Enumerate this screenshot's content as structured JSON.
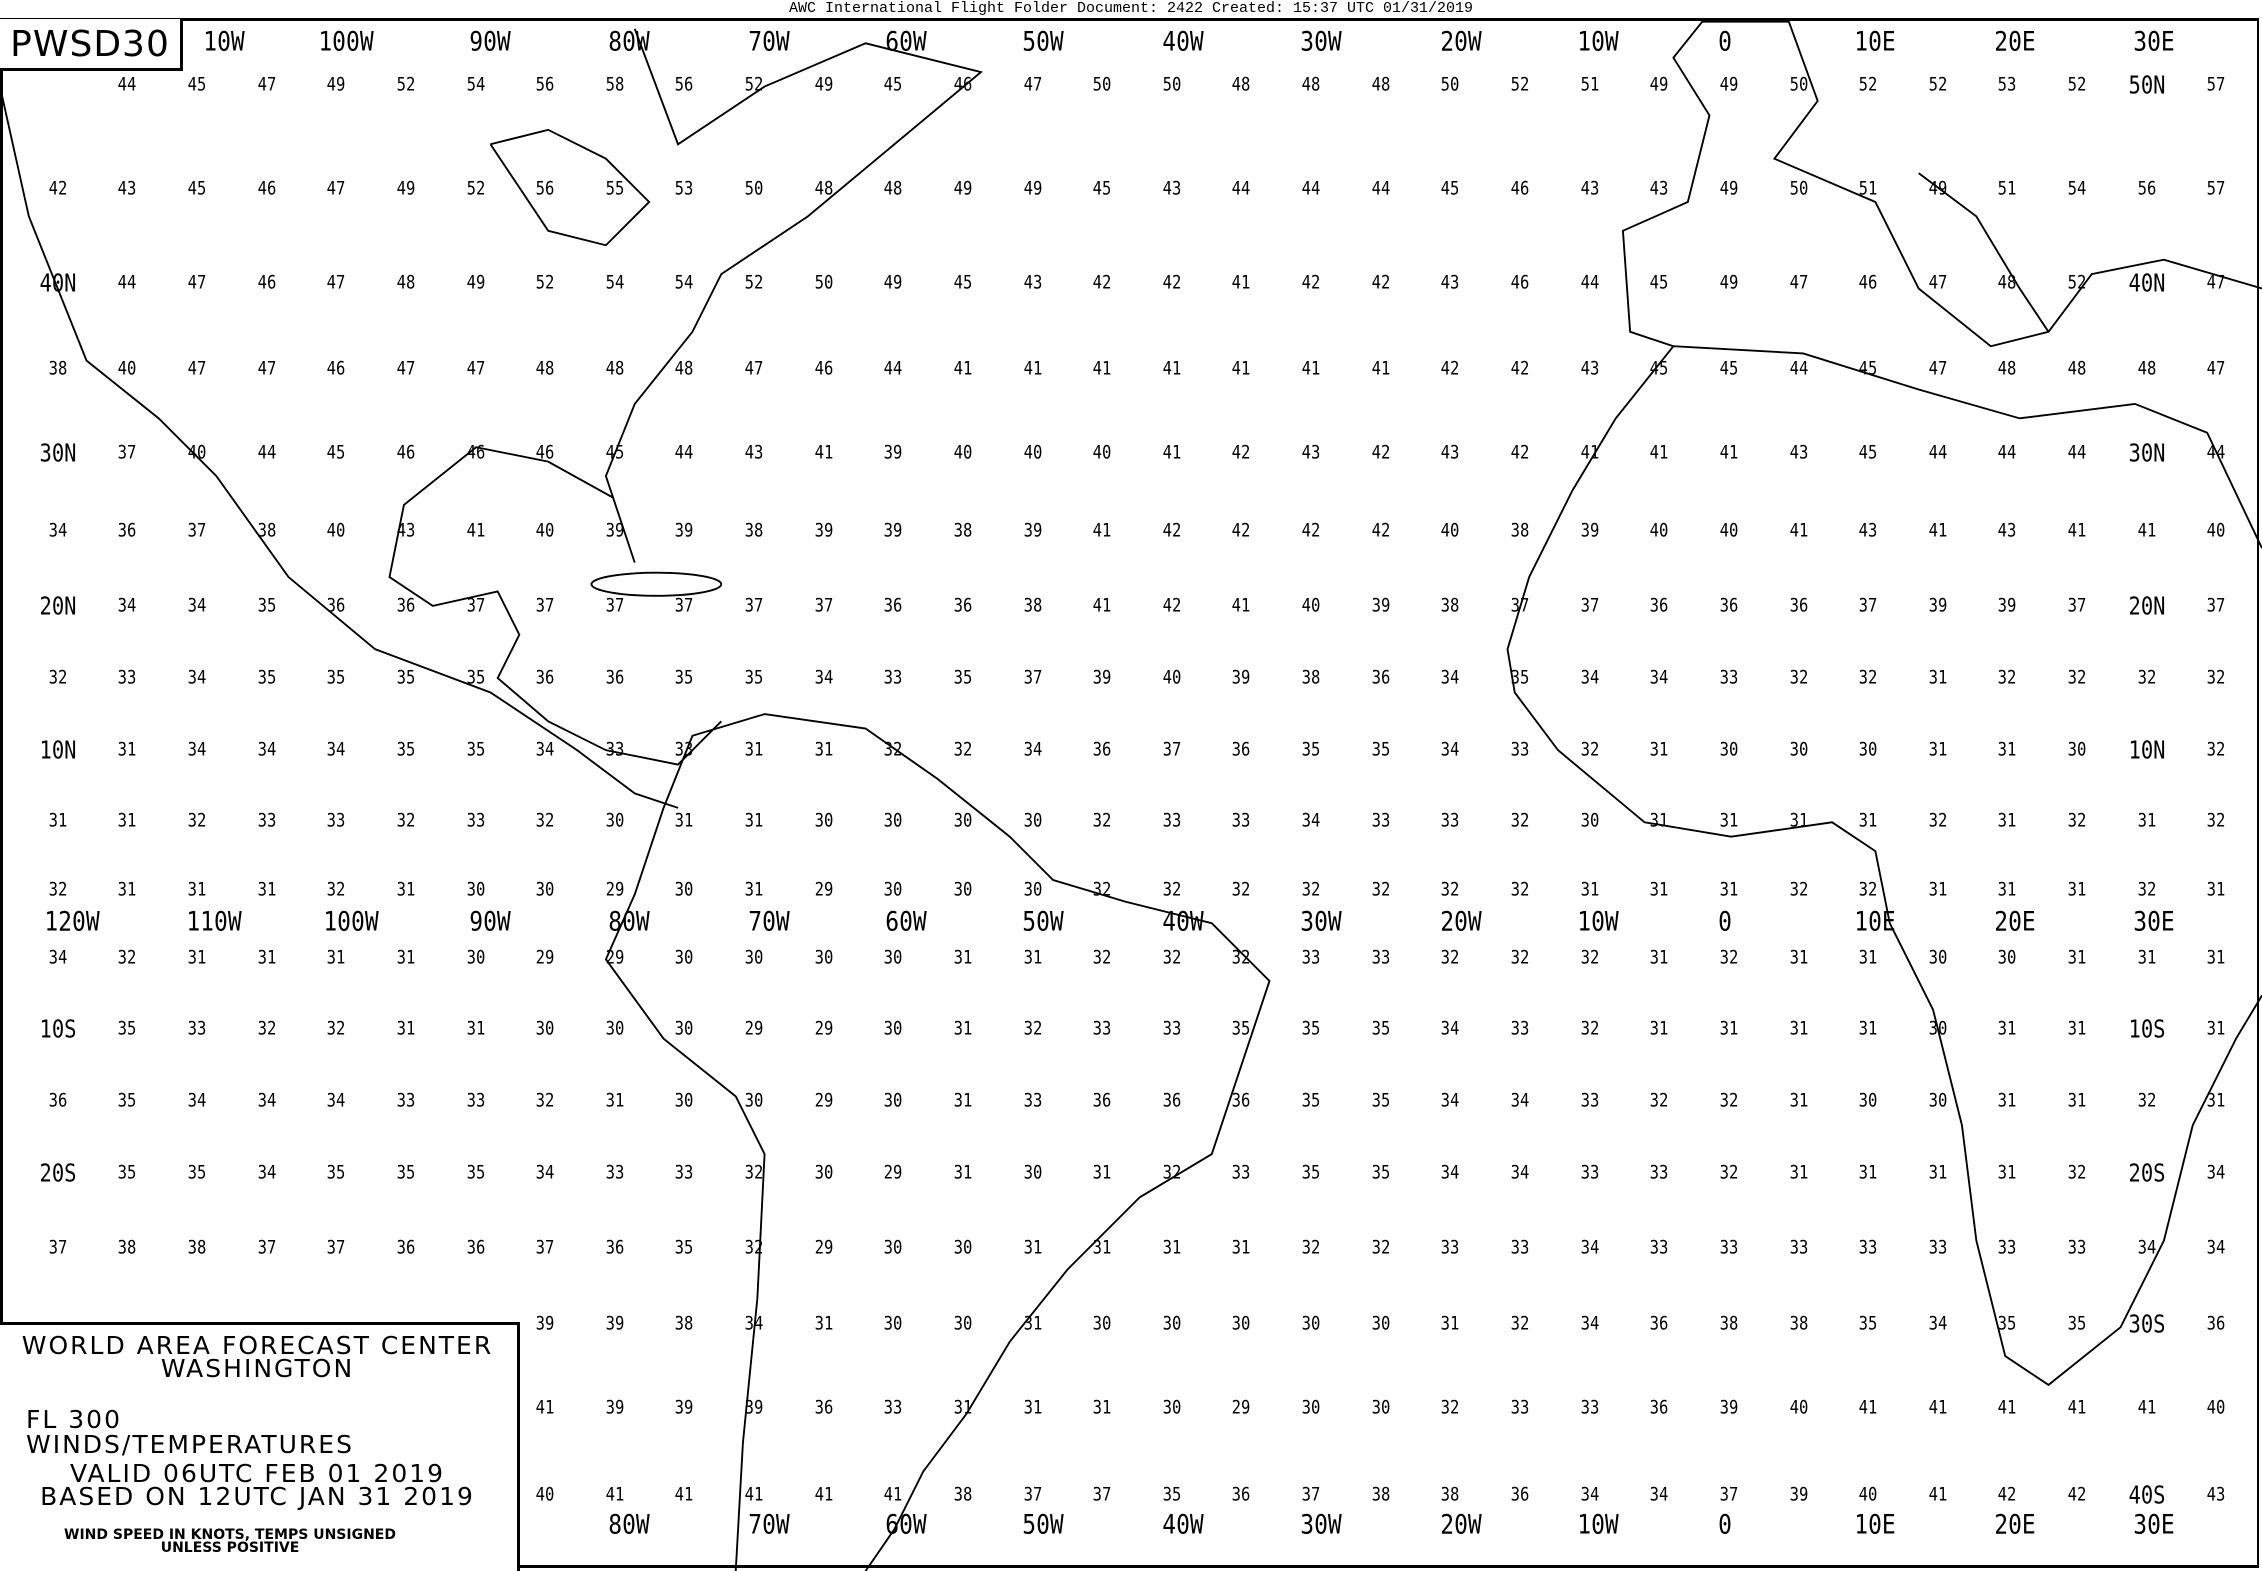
{
  "header": {
    "document_title": "AWC International Flight Folder Document: 2422 Created: 15:37 UTC 01/31/2019"
  },
  "chart_id": "PWSD30",
  "legend": {
    "center": "WORLD AREA FORECAST CENTER",
    "city": "WASHINGTON",
    "level": "FL 300",
    "product": "WINDS/TEMPERATURES",
    "valid": "VALID 06UTC FEB 01 2019",
    "based_on": "BASED ON 12UTC JAN 31 2019",
    "note_line1": "WIND SPEED IN KNOTS, TEMPS UNSIGNED",
    "note_line2": "UNLESS POSITIVE"
  },
  "longitude_labels": {
    "top": [
      "10W",
      "100W",
      "90W",
      "80W",
      "70W",
      "60W",
      "50W",
      "40W",
      "30W",
      "20W",
      "10W",
      "0",
      "10E",
      "20E",
      "30E"
    ],
    "middle": [
      "120W",
      "110W",
      "100W",
      "90W",
      "80W",
      "70W",
      "60W",
      "50W",
      "40W",
      "30W",
      "20W",
      "10W",
      "0",
      "10E",
      "20E",
      "30E"
    ],
    "bottom": [
      "80W",
      "70W",
      "60W",
      "50W",
      "40W",
      "30W",
      "20W",
      "10W",
      "0",
      "10E",
      "20E",
      "30E"
    ]
  },
  "temperature_grid": [
    [
      "",
      "44",
      "45",
      "47",
      "49",
      "52",
      "54",
      "56",
      "58",
      "56",
      "52",
      "49",
      "45",
      "46",
      "47",
      "50",
      "50",
      "48",
      "48",
      "48",
      "50",
      "52",
      "51",
      "49",
      "49",
      "50",
      "52",
      "52",
      "53",
      "52",
      "50N",
      "57"
    ],
    [
      "42",
      "43",
      "45",
      "46",
      "47",
      "49",
      "52",
      "56",
      "55",
      "53",
      "50",
      "48",
      "48",
      "49",
      "49",
      "45",
      "43",
      "44",
      "44",
      "44",
      "45",
      "46",
      "43",
      "43",
      "49",
      "50",
      "51",
      "49",
      "51",
      "54",
      "56",
      "57"
    ],
    [
      "40N",
      "44",
      "47",
      "46",
      "47",
      "48",
      "49",
      "52",
      "54",
      "54",
      "52",
      "50",
      "49",
      "45",
      "43",
      "42",
      "42",
      "41",
      "42",
      "42",
      "43",
      "46",
      "44",
      "45",
      "49",
      "47",
      "46",
      "47",
      "48",
      "52",
      "40N",
      "47"
    ],
    [
      "38",
      "40",
      "47",
      "47",
      "46",
      "47",
      "47",
      "48",
      "48",
      "48",
      "47",
      "46",
      "44",
      "41",
      "41",
      "41",
      "41",
      "41",
      "41",
      "41",
      "42",
      "42",
      "43",
      "45",
      "45",
      "44",
      "45",
      "47",
      "48",
      "48",
      "48",
      "47"
    ],
    [
      "30N",
      "37",
      "40",
      "44",
      "45",
      "46",
      "46",
      "46",
      "45",
      "44",
      "43",
      "41",
      "39",
      "40",
      "40",
      "40",
      "41",
      "42",
      "43",
      "42",
      "43",
      "42",
      "41",
      "41",
      "41",
      "43",
      "45",
      "44",
      "44",
      "44",
      "30N",
      "44"
    ],
    [
      "34",
      "36",
      "37",
      "38",
      "40",
      "43",
      "41",
      "40",
      "39",
      "39",
      "38",
      "39",
      "39",
      "38",
      "39",
      "41",
      "42",
      "42",
      "42",
      "42",
      "40",
      "38",
      "39",
      "40",
      "40",
      "41",
      "43",
      "41",
      "43",
      "41",
      "41",
      "40"
    ],
    [
      "20N",
      "34",
      "34",
      "35",
      "36",
      "36",
      "37",
      "37",
      "37",
      "37",
      "37",
      "37",
      "36",
      "36",
      "38",
      "41",
      "42",
      "41",
      "40",
      "39",
      "38",
      "37",
      "37",
      "36",
      "36",
      "36",
      "37",
      "39",
      "39",
      "37",
      "20N",
      "37"
    ],
    [
      "32",
      "33",
      "34",
      "35",
      "35",
      "35",
      "35",
      "36",
      "36",
      "35",
      "35",
      "34",
      "33",
      "35",
      "37",
      "39",
      "40",
      "39",
      "38",
      "36",
      "34",
      "35",
      "34",
      "34",
      "33",
      "32",
      "32",
      "31",
      "32",
      "32",
      "32",
      "32"
    ],
    [
      "10N",
      "31",
      "34",
      "34",
      "34",
      "35",
      "35",
      "34",
      "33",
      "33",
      "31",
      "31",
      "32",
      "32",
      "34",
      "36",
      "37",
      "36",
      "35",
      "35",
      "34",
      "33",
      "32",
      "31",
      "30",
      "30",
      "30",
      "31",
      "31",
      "30",
      "10N",
      "32"
    ],
    [
      "31",
      "31",
      "32",
      "33",
      "33",
      "32",
      "33",
      "32",
      "30",
      "31",
      "31",
      "30",
      "30",
      "30",
      "30",
      "32",
      "33",
      "33",
      "34",
      "33",
      "33",
      "32",
      "30",
      "31",
      "31",
      "31",
      "31",
      "32",
      "31",
      "32",
      "31",
      "32"
    ],
    [
      "32",
      "31",
      "31",
      "31",
      "32",
      "31",
      "30",
      "30",
      "29",
      "30",
      "31",
      "29",
      "30",
      "30",
      "30",
      "32",
      "32",
      "32",
      "32",
      "32",
      "32",
      "32",
      "31",
      "31",
      "31",
      "32",
      "32",
      "31",
      "31",
      "31",
      "32",
      "31"
    ],
    [
      "34",
      "32",
      "31",
      "31",
      "31",
      "31",
      "30",
      "29",
      "29",
      "30",
      "30",
      "30",
      "30",
      "31",
      "31",
      "32",
      "32",
      "32",
      "33",
      "33",
      "32",
      "32",
      "32",
      "31",
      "32",
      "31",
      "31",
      "30",
      "30",
      "31",
      "31",
      "31"
    ],
    [
      "10S",
      "35",
      "33",
      "32",
      "32",
      "31",
      "31",
      "30",
      "30",
      "30",
      "29",
      "29",
      "30",
      "31",
      "32",
      "33",
      "33",
      "35",
      "35",
      "35",
      "34",
      "33",
      "32",
      "31",
      "31",
      "31",
      "31",
      "30",
      "31",
      "31",
      "10S",
      "31"
    ],
    [
      "36",
      "35",
      "34",
      "34",
      "34",
      "33",
      "33",
      "32",
      "31",
      "30",
      "30",
      "29",
      "30",
      "31",
      "33",
      "36",
      "36",
      "36",
      "35",
      "35",
      "34",
      "34",
      "33",
      "32",
      "32",
      "31",
      "30",
      "30",
      "31",
      "31",
      "32",
      "31"
    ],
    [
      "20S",
      "35",
      "35",
      "34",
      "35",
      "35",
      "35",
      "34",
      "33",
      "33",
      "32",
      "30",
      "29",
      "31",
      "30",
      "31",
      "32",
      "33",
      "35",
      "35",
      "34",
      "34",
      "33",
      "33",
      "32",
      "31",
      "31",
      "31",
      "31",
      "32",
      "20S",
      "34"
    ],
    [
      "37",
      "38",
      "38",
      "37",
      "37",
      "36",
      "36",
      "37",
      "36",
      "35",
      "32",
      "29",
      "30",
      "30",
      "31",
      "31",
      "31",
      "31",
      "32",
      "32",
      "33",
      "33",
      "34",
      "33",
      "33",
      "33",
      "33",
      "33",
      "33",
      "33",
      "34",
      "34"
    ],
    [
      "",
      "",
      "",
      "",
      "",
      "",
      "",
      "39",
      "39",
      "38",
      "34",
      "31",
      "30",
      "30",
      "31",
      "30",
      "30",
      "30",
      "30",
      "30",
      "31",
      "32",
      "34",
      "36",
      "38",
      "38",
      "35",
      "34",
      "35",
      "35",
      "30S",
      "36"
    ],
    [
      "",
      "",
      "",
      "",
      "",
      "",
      "",
      "41",
      "39",
      "39",
      "39",
      "36",
      "33",
      "31",
      "31",
      "31",
      "30",
      "29",
      "30",
      "30",
      "32",
      "33",
      "33",
      "36",
      "39",
      "40",
      "41",
      "41",
      "41",
      "41",
      "41",
      "40"
    ],
    [
      "",
      "",
      "",
      "",
      "",
      "",
      "",
      "40",
      "41",
      "41",
      "41",
      "41",
      "41",
      "38",
      "37",
      "37",
      "35",
      "36",
      "37",
      "38",
      "38",
      "36",
      "34",
      "34",
      "37",
      "39",
      "40",
      "41",
      "42",
      "42",
      "40S",
      "43"
    ]
  ]
}
